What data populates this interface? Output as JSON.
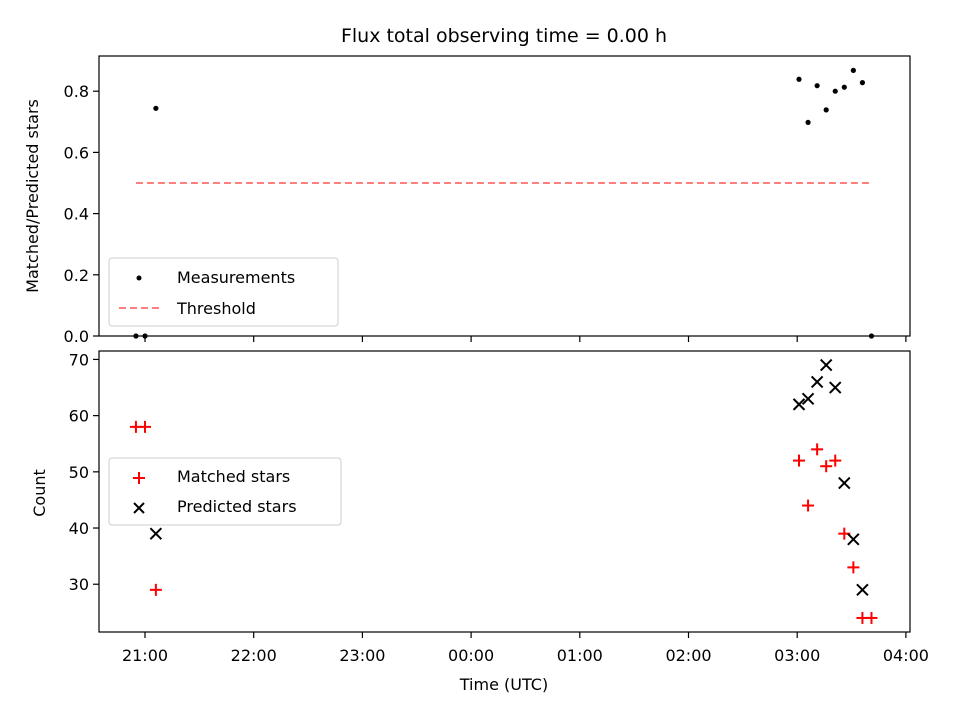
{
  "chart_data": [
    {
      "type": "scatter",
      "title": "Flux total observing time = 0.00 h",
      "ylabel": "Matched/Predicted stars",
      "xlabel": "",
      "ylim": [
        0,
        0.915
      ],
      "x_ticks": [
        "21:00",
        "22:00",
        "23:00",
        "00:00",
        "01:00",
        "02:00",
        "03:00",
        "04:00"
      ],
      "y_ticks": [
        "0.0",
        "0.2",
        "0.4",
        "0.6",
        "0.8"
      ],
      "grid": false,
      "legend": "lower-left",
      "series": [
        {
          "name": "Measurements",
          "marker": "dot",
          "color": "#000000",
          "points": [
            {
              "t": "20:55",
              "y": 0.0
            },
            {
              "t": "21:00",
              "y": 0.0
            },
            {
              "t": "21:06",
              "y": 0.744
            },
            {
              "t": "03:01",
              "y": 0.839
            },
            {
              "t": "03:06",
              "y": 0.698
            },
            {
              "t": "03:11",
              "y": 0.818
            },
            {
              "t": "03:16",
              "y": 0.739
            },
            {
              "t": "03:21",
              "y": 0.8
            },
            {
              "t": "03:26",
              "y": 0.813
            },
            {
              "t": "03:31",
              "y": 0.868
            },
            {
              "t": "03:36",
              "y": 0.828
            },
            {
              "t": "03:41",
              "y": 0.0
            }
          ]
        },
        {
          "name": "Threshold",
          "type": "line",
          "style": "dashed",
          "color": "#ff7f7f",
          "points": [
            {
              "t": "20:55",
              "y": 0.5
            },
            {
              "t": "03:41",
              "y": 0.5
            }
          ]
        }
      ]
    },
    {
      "type": "scatter",
      "title": "",
      "ylabel": "Count",
      "xlabel": "Time (UTC)",
      "ylim": [
        21.5,
        71.5
      ],
      "x_ticks": [
        "21:00",
        "22:00",
        "23:00",
        "00:00",
        "01:00",
        "02:00",
        "03:00",
        "04:00"
      ],
      "y_ticks": [
        "30",
        "40",
        "50",
        "60",
        "70"
      ],
      "grid": false,
      "legend": "center-left",
      "series": [
        {
          "name": "Matched stars",
          "marker": "plus",
          "color": "#ff0000",
          "points": [
            {
              "t": "20:55",
              "y": 58
            },
            {
              "t": "21:00",
              "y": 58
            },
            {
              "t": "21:06",
              "y": 29
            },
            {
              "t": "03:01",
              "y": 52
            },
            {
              "t": "03:06",
              "y": 44
            },
            {
              "t": "03:11",
              "y": 54
            },
            {
              "t": "03:16",
              "y": 51
            },
            {
              "t": "03:21",
              "y": 52
            },
            {
              "t": "03:26",
              "y": 39
            },
            {
              "t": "03:31",
              "y": 33
            },
            {
              "t": "03:36",
              "y": 24
            },
            {
              "t": "03:41",
              "y": 24
            }
          ]
        },
        {
          "name": "Predicted stars",
          "marker": "x",
          "color": "#000000",
          "points": [
            {
              "t": "21:06",
              "y": 39
            },
            {
              "t": "03:01",
              "y": 62
            },
            {
              "t": "03:06",
              "y": 63
            },
            {
              "t": "03:11",
              "y": 66
            },
            {
              "t": "03:16",
              "y": 69
            },
            {
              "t": "03:21",
              "y": 65
            },
            {
              "t": "03:26",
              "y": 48
            },
            {
              "t": "03:31",
              "y": 38
            },
            {
              "t": "03:36",
              "y": 29
            }
          ]
        }
      ]
    }
  ]
}
